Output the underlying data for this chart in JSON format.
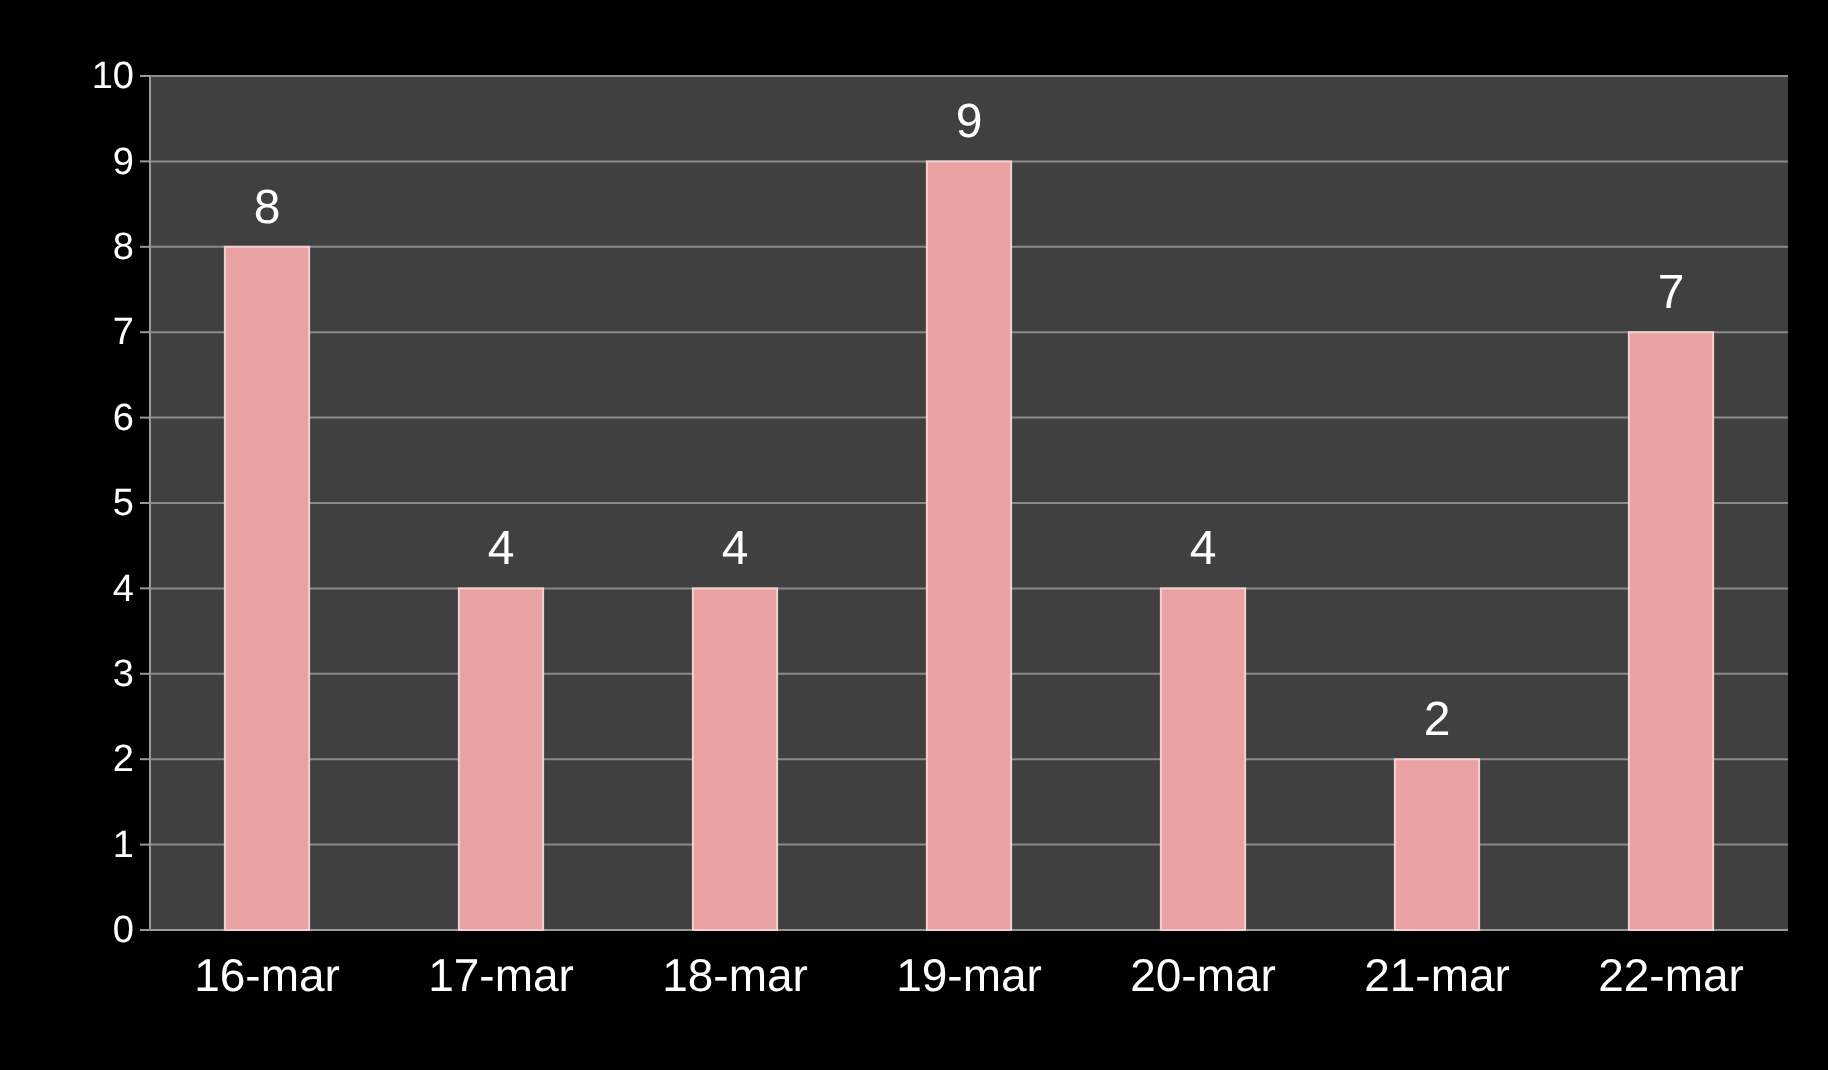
{
  "chart_data": {
    "type": "bar",
    "categories": [
      "16-mar",
      "17-mar",
      "18-mar",
      "19-mar",
      "20-mar",
      "21-mar",
      "22-mar"
    ],
    "values": [
      8,
      4,
      4,
      9,
      4,
      2,
      7
    ],
    "color": "#e8a2a2",
    "ylim": [
      0,
      10
    ],
    "yticks": [
      0,
      1,
      2,
      3,
      4,
      5,
      6,
      7,
      8,
      9,
      10
    ],
    "grid": "y",
    "data_labels": true
  }
}
